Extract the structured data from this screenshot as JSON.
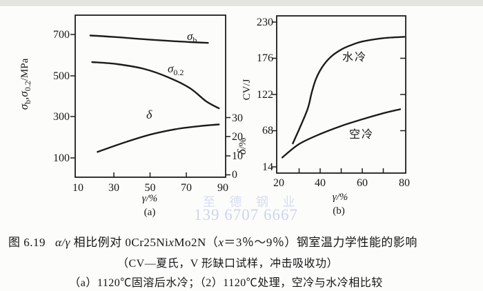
{
  "watermark": {
    "line1": "至 德 钢 业",
    "line2": "139 6707 6667",
    "color": "#ccd5f0"
  },
  "caption": {
    "fig_label": "图 6.19",
    "title_parts": {
      "greek": "α/γ",
      "a": " 相比例对 0Cr25Ni",
      "x1": "x",
      "b": "Mo2N（",
      "x2": "x",
      "c": "＝3％～9％）钢室温力学性能的影响"
    },
    "line2": "（CV—夏氏，V 形缺口试样，冲击吸收功）",
    "line3": "（a）1120℃固溶后水冷；（2）1120℃处理，空冷与水冷相比较"
  },
  "chart_data": [
    {
      "id": "a",
      "type": "line",
      "panel_label": "(a)",
      "xlabel": "γ/%",
      "ylabel_left": "σb,σ0.2/MPa",
      "ylabel_right": "δ/%",
      "xlim": [
        10,
        90
      ],
      "xtick_labels": [
        "10",
        "30",
        "50",
        "70",
        "90"
      ],
      "yticks_left": [
        700,
        500,
        300,
        100
      ],
      "ytick_left_labels": [
        "700",
        "500",
        "300",
        "100"
      ],
      "yticks_right": [
        30,
        20,
        10,
        0
      ],
      "ytick_right_labels": [
        "30",
        "20",
        "10",
        "0"
      ],
      "ylabel_left_parts": {
        "p1": "σ",
        "s1": "b",
        "p2": ",σ",
        "s2": "0.2",
        "p3": "/MPa"
      },
      "ylabel_right_parts": {
        "base": "δ",
        "rest": "/%"
      },
      "label_sigma_b": {
        "base": "σ",
        "sub": "b"
      },
      "label_sigma_02": {
        "base": "σ",
        "sub": "0.2"
      },
      "label_delta": "δ",
      "grid": false,
      "series": [
        {
          "name": "σb",
          "axis": "left",
          "x": [
            17,
            30,
            45,
            60,
            72,
            82
          ],
          "y": [
            695,
            688,
            678,
            669,
            663,
            659
          ]
        },
        {
          "name": "σ0.2",
          "axis": "left",
          "x": [
            18,
            32,
            47,
            60,
            72,
            81,
            88
          ],
          "y": [
            566,
            556,
            532,
            492,
            439,
            375,
            341
          ]
        },
        {
          "name": "δ",
          "axis": "right",
          "x": [
            21,
            36,
            51,
            66,
            78,
            88
          ],
          "y": [
            12,
            17,
            21.3,
            24.2,
            25.6,
            26.4
          ]
        }
      ]
    },
    {
      "id": "b",
      "type": "line",
      "panel_label": "(b)",
      "xlabel": "γ/%",
      "ylabel": "CV/J",
      "xlim": [
        20,
        80
      ],
      "xtick_labels": [
        "20",
        "40",
        "60",
        "80"
      ],
      "yticks": [
        230,
        176,
        122,
        68,
        14
      ],
      "ytick_labels": [
        "230",
        "176",
        "122",
        "68",
        "14"
      ],
      "grid": false,
      "series": [
        {
          "name": "水冷",
          "x": [
            27,
            30,
            34,
            36,
            38,
            41,
            45,
            50,
            55,
            60,
            70,
            80
          ],
          "y": [
            49,
            70,
            100,
            125,
            145,
            163,
            178,
            189,
            196,
            201,
            206,
            208
          ]
        },
        {
          "name": "空冷",
          "x": [
            22,
            30,
            40,
            50,
            60,
            70,
            78
          ],
          "y": [
            28,
            48,
            63,
            75,
            85,
            94,
            100
          ]
        }
      ]
    }
  ]
}
